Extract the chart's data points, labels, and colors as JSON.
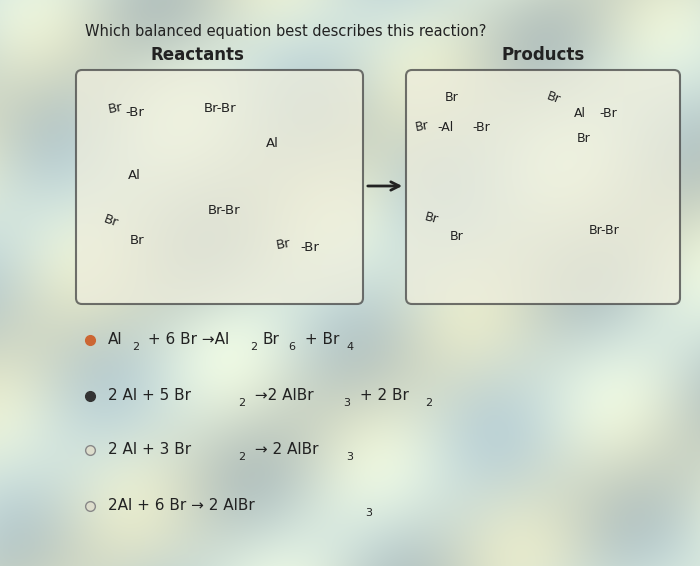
{
  "title": "Which balanced equation best describes this reaction?",
  "reactants_label": "Reactants",
  "products_label": "Products",
  "bg_base": "#c8d8c0",
  "bg_wave1": "#b8cce0",
  "bg_wave2": "#e8e0b0",
  "box_color": "#eeeedd",
  "box_edge_color": "#444444",
  "arrow_color": "#222222",
  "option1_bullet_color": "#cc6633",
  "option2_bullet_color": "#333333",
  "option3_bullet_color": "#cccccc",
  "option4_bullet_color": "#cccccc",
  "text_color": "#222222"
}
